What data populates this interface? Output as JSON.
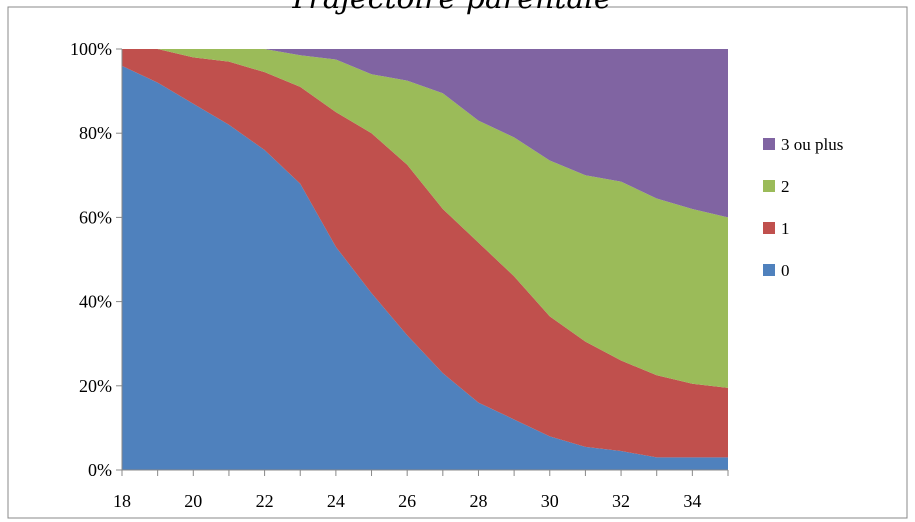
{
  "chart_data": {
    "type": "area",
    "stacked": "percent",
    "title": "Trajectoire parentale",
    "x": [
      18,
      19,
      20,
      21,
      22,
      23,
      24,
      25,
      26,
      27,
      28,
      29,
      30,
      31,
      32,
      33,
      34,
      35
    ],
    "xticks": [
      "18",
      "20",
      "22",
      "24",
      "26",
      "28",
      "30",
      "32",
      "34"
    ],
    "yticks": [
      "0%",
      "20%",
      "40%",
      "60%",
      "80%",
      "100%"
    ],
    "ylim": [
      0,
      100
    ],
    "grid": false,
    "legend_position": "right",
    "series": [
      {
        "name": "0",
        "color": "#4F81BD",
        "values": [
          96,
          92,
          87,
          82,
          76,
          68,
          53,
          42,
          32,
          23,
          16,
          12,
          8,
          5.5,
          4.5,
          3,
          3,
          3
        ]
      },
      {
        "name": "1",
        "color": "#C0504D",
        "values": [
          4,
          8,
          11,
          15,
          18.5,
          23,
          32,
          38,
          40.5,
          39,
          38,
          34,
          28.5,
          25,
          21.5,
          19.5,
          17.5,
          16.5
        ]
      },
      {
        "name": "2",
        "color": "#9BBB59",
        "values": [
          0,
          0,
          2,
          3,
          5.5,
          7.5,
          12.5,
          14,
          20,
          27.5,
          29,
          33,
          37,
          39.5,
          42.5,
          42,
          41.5,
          40.5
        ]
      },
      {
        "name": "3 ou plus",
        "color": "#8064A2",
        "values": [
          0,
          0,
          0,
          0,
          0,
          1.5,
          2.5,
          6,
          7.5,
          10.5,
          17,
          21,
          26.5,
          30,
          31.5,
          35.5,
          38,
          40
        ]
      }
    ]
  }
}
